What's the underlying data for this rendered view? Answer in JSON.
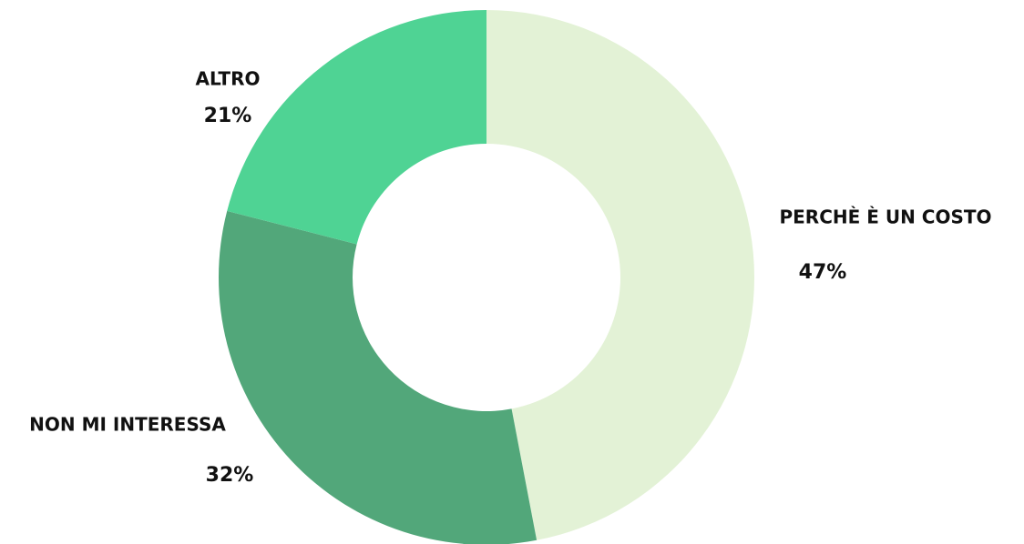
{
  "chart_data": {
    "type": "donut",
    "categories": [
      "PERCHÈ È UN COSTO",
      "NON MI INTERESSA",
      "ALTRO"
    ],
    "values": [
      47,
      32,
      21
    ],
    "value_labels": [
      "47%",
      "32%",
      "21%"
    ],
    "colors": [
      "#e3f2d6",
      "#52a77a",
      "#4fd394"
    ]
  }
}
